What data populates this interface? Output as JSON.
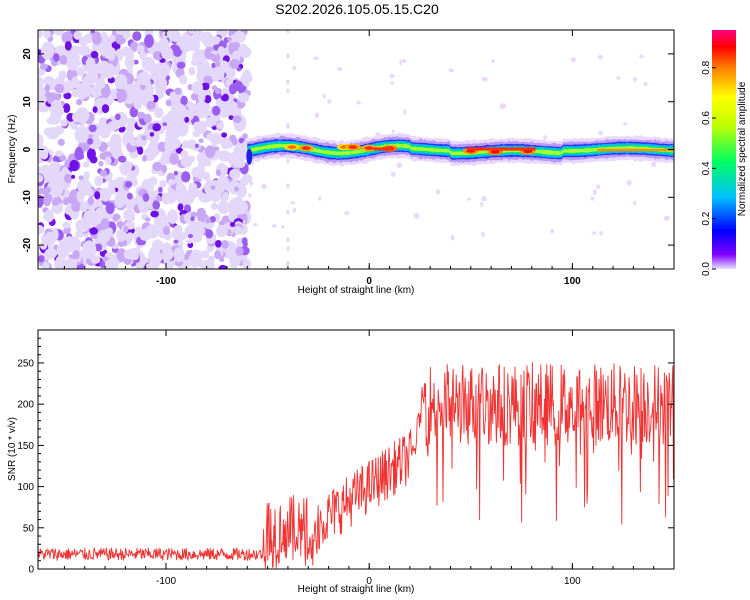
{
  "title": "S202.2026.105.05.15.C20",
  "chart_data": [
    {
      "type": "heatmap",
      "xlabel": "Height of straight line (km)",
      "ylabel": "Frequency (Hz)",
      "xlim": [
        -163,
        150
      ],
      "ylim": [
        -25,
        25
      ],
      "xticks": [
        "-100",
        "0",
        "100"
      ],
      "xtick_values": [
        -100,
        0,
        100
      ],
      "yticks": [
        "20",
        "10",
        "0",
        "-10",
        "-20"
      ],
      "ytick_values": [
        20,
        10,
        0,
        -10,
        -20
      ],
      "noise_region_x": [
        -163,
        -60
      ],
      "signal_start_x": -60,
      "signal_frequency_hz": 0,
      "signal_peaks": [
        {
          "x": -38,
          "freq": 0.5,
          "amp": 0.85
        },
        {
          "x": -31,
          "freq": 0.3,
          "amp": 0.9
        },
        {
          "x": -12,
          "freq": 0.5,
          "amp": 0.85
        },
        {
          "x": -8,
          "freq": 0.5,
          "amp": 0.9
        },
        {
          "x": 0,
          "freq": 0.3,
          "amp": 0.9
        },
        {
          "x": 10,
          "freq": 0.2,
          "amp": 0.95
        },
        {
          "x": 50,
          "freq": -0.3,
          "amp": 0.92
        },
        {
          "x": 62,
          "freq": -0.5,
          "amp": 0.93
        },
        {
          "x": 78,
          "freq": -0.4,
          "amp": 0.92
        }
      ],
      "colorbar": {
        "label": "Normalized spectral amplitude",
        "ticks": [
          "0.0",
          "0.2",
          "0.4",
          "0.6",
          "0.8"
        ],
        "tick_values": [
          0.0,
          0.2,
          0.4,
          0.6,
          0.8
        ],
        "range": [
          0,
          0.95
        ]
      }
    },
    {
      "type": "line",
      "xlabel": "Height of straight line (km)",
      "ylabel": "SNR (10 * v/v)",
      "xlim": [
        -163,
        150
      ],
      "ylim": [
        0,
        290
      ],
      "xticks": [
        "-100",
        "0",
        "100"
      ],
      "xtick_values": [
        -100,
        0,
        100
      ],
      "yticks": [
        "0",
        "50",
        "100",
        "150",
        "200",
        "250"
      ],
      "ytick_values": [
        0,
        50,
        100,
        150,
        200,
        250
      ],
      "color": "#f03232",
      "segments": [
        {
          "x": [
            -163,
            -52
          ],
          "baseline": 18,
          "spread": 13
        },
        {
          "x": [
            -52,
            -25
          ],
          "baseline": 45,
          "spread": 75
        },
        {
          "x": [
            -25,
            22
          ],
          "baseline_start": 55,
          "baseline_end": 140,
          "spread": 55
        },
        {
          "x": [
            22,
            28
          ],
          "baseline_start": 140,
          "baseline_end": 235,
          "spread": 30
        },
        {
          "x": [
            28,
            150
          ],
          "baseline": 200,
          "spread": 85
        }
      ]
    }
  ]
}
